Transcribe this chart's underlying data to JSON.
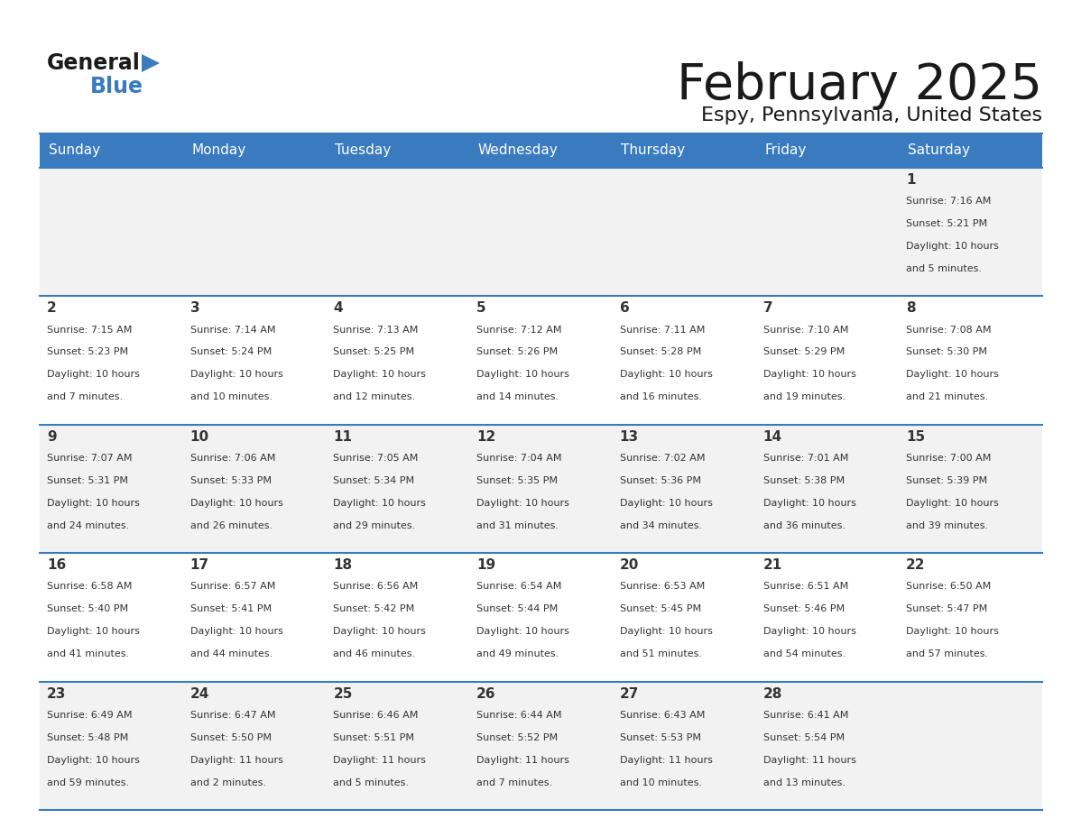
{
  "title": "February 2025",
  "subtitle": "Espy, Pennsylvania, United States",
  "header_bg": "#3a7bbf",
  "header_text": "#ffffff",
  "cell_bg_odd": "#f2f2f2",
  "cell_bg_even": "#ffffff",
  "border_color": "#3a7bbf",
  "day_headers": [
    "Sunday",
    "Monday",
    "Tuesday",
    "Wednesday",
    "Thursday",
    "Friday",
    "Saturday"
  ],
  "title_color": "#1a1a1a",
  "subtitle_color": "#1a1a1a",
  "cell_text_color": "#333333",
  "logo_general_color": "#1a1a1a",
  "logo_blue_color": "#3a7bbf",
  "logo_triangle_color": "#3a7bbf",
  "days": [
    {
      "day": 1,
      "col": 6,
      "row": 0,
      "sunrise": "7:16 AM",
      "sunset": "5:21 PM",
      "daylight_hours": 10,
      "daylight_minutes": 5
    },
    {
      "day": 2,
      "col": 0,
      "row": 1,
      "sunrise": "7:15 AM",
      "sunset": "5:23 PM",
      "daylight_hours": 10,
      "daylight_minutes": 7
    },
    {
      "day": 3,
      "col": 1,
      "row": 1,
      "sunrise": "7:14 AM",
      "sunset": "5:24 PM",
      "daylight_hours": 10,
      "daylight_minutes": 10
    },
    {
      "day": 4,
      "col": 2,
      "row": 1,
      "sunrise": "7:13 AM",
      "sunset": "5:25 PM",
      "daylight_hours": 10,
      "daylight_minutes": 12
    },
    {
      "day": 5,
      "col": 3,
      "row": 1,
      "sunrise": "7:12 AM",
      "sunset": "5:26 PM",
      "daylight_hours": 10,
      "daylight_minutes": 14
    },
    {
      "day": 6,
      "col": 4,
      "row": 1,
      "sunrise": "7:11 AM",
      "sunset": "5:28 PM",
      "daylight_hours": 10,
      "daylight_minutes": 16
    },
    {
      "day": 7,
      "col": 5,
      "row": 1,
      "sunrise": "7:10 AM",
      "sunset": "5:29 PM",
      "daylight_hours": 10,
      "daylight_minutes": 19
    },
    {
      "day": 8,
      "col": 6,
      "row": 1,
      "sunrise": "7:08 AM",
      "sunset": "5:30 PM",
      "daylight_hours": 10,
      "daylight_minutes": 21
    },
    {
      "day": 9,
      "col": 0,
      "row": 2,
      "sunrise": "7:07 AM",
      "sunset": "5:31 PM",
      "daylight_hours": 10,
      "daylight_minutes": 24
    },
    {
      "day": 10,
      "col": 1,
      "row": 2,
      "sunrise": "7:06 AM",
      "sunset": "5:33 PM",
      "daylight_hours": 10,
      "daylight_minutes": 26
    },
    {
      "day": 11,
      "col": 2,
      "row": 2,
      "sunrise": "7:05 AM",
      "sunset": "5:34 PM",
      "daylight_hours": 10,
      "daylight_minutes": 29
    },
    {
      "day": 12,
      "col": 3,
      "row": 2,
      "sunrise": "7:04 AM",
      "sunset": "5:35 PM",
      "daylight_hours": 10,
      "daylight_minutes": 31
    },
    {
      "day": 13,
      "col": 4,
      "row": 2,
      "sunrise": "7:02 AM",
      "sunset": "5:36 PM",
      "daylight_hours": 10,
      "daylight_minutes": 34
    },
    {
      "day": 14,
      "col": 5,
      "row": 2,
      "sunrise": "7:01 AM",
      "sunset": "5:38 PM",
      "daylight_hours": 10,
      "daylight_minutes": 36
    },
    {
      "day": 15,
      "col": 6,
      "row": 2,
      "sunrise": "7:00 AM",
      "sunset": "5:39 PM",
      "daylight_hours": 10,
      "daylight_minutes": 39
    },
    {
      "day": 16,
      "col": 0,
      "row": 3,
      "sunrise": "6:58 AM",
      "sunset": "5:40 PM",
      "daylight_hours": 10,
      "daylight_minutes": 41
    },
    {
      "day": 17,
      "col": 1,
      "row": 3,
      "sunrise": "6:57 AM",
      "sunset": "5:41 PM",
      "daylight_hours": 10,
      "daylight_minutes": 44
    },
    {
      "day": 18,
      "col": 2,
      "row": 3,
      "sunrise": "6:56 AM",
      "sunset": "5:42 PM",
      "daylight_hours": 10,
      "daylight_minutes": 46
    },
    {
      "day": 19,
      "col": 3,
      "row": 3,
      "sunrise": "6:54 AM",
      "sunset": "5:44 PM",
      "daylight_hours": 10,
      "daylight_minutes": 49
    },
    {
      "day": 20,
      "col": 4,
      "row": 3,
      "sunrise": "6:53 AM",
      "sunset": "5:45 PM",
      "daylight_hours": 10,
      "daylight_minutes": 51
    },
    {
      "day": 21,
      "col": 5,
      "row": 3,
      "sunrise": "6:51 AM",
      "sunset": "5:46 PM",
      "daylight_hours": 10,
      "daylight_minutes": 54
    },
    {
      "day": 22,
      "col": 6,
      "row": 3,
      "sunrise": "6:50 AM",
      "sunset": "5:47 PM",
      "daylight_hours": 10,
      "daylight_minutes": 57
    },
    {
      "day": 23,
      "col": 0,
      "row": 4,
      "sunrise": "6:49 AM",
      "sunset": "5:48 PM",
      "daylight_hours": 10,
      "daylight_minutes": 59
    },
    {
      "day": 24,
      "col": 1,
      "row": 4,
      "sunrise": "6:47 AM",
      "sunset": "5:50 PM",
      "daylight_hours": 11,
      "daylight_minutes": 2
    },
    {
      "day": 25,
      "col": 2,
      "row": 4,
      "sunrise": "6:46 AM",
      "sunset": "5:51 PM",
      "daylight_hours": 11,
      "daylight_minutes": 5
    },
    {
      "day": 26,
      "col": 3,
      "row": 4,
      "sunrise": "6:44 AM",
      "sunset": "5:52 PM",
      "daylight_hours": 11,
      "daylight_minutes": 7
    },
    {
      "day": 27,
      "col": 4,
      "row": 4,
      "sunrise": "6:43 AM",
      "sunset": "5:53 PM",
      "daylight_hours": 11,
      "daylight_minutes": 10
    },
    {
      "day": 28,
      "col": 5,
      "row": 4,
      "sunrise": "6:41 AM",
      "sunset": "5:54 PM",
      "daylight_hours": 11,
      "daylight_minutes": 13
    }
  ]
}
